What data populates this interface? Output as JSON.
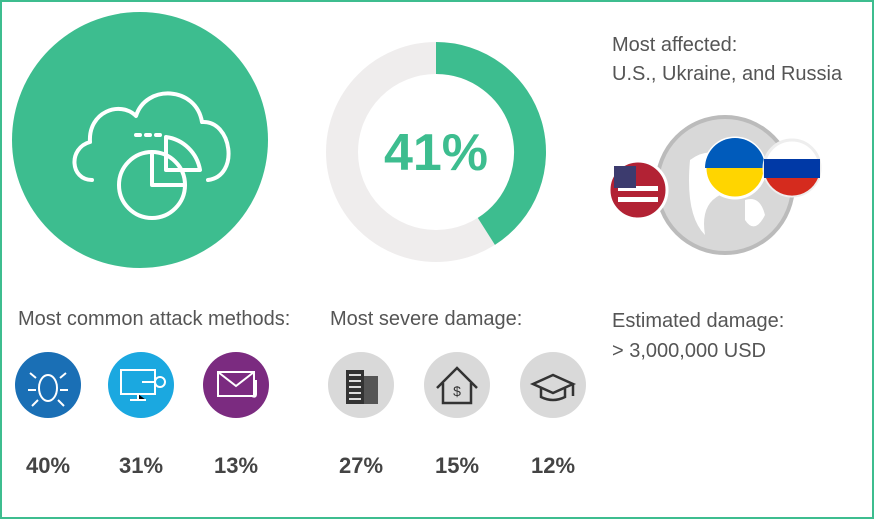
{
  "donut": {
    "value": 41,
    "label": "41%"
  },
  "affected": {
    "title": "Most affected:",
    "text": "U.S., Ukraine, and Russia"
  },
  "attack_methods": {
    "title": "Most common attack methods:",
    "items": [
      "40%",
      "31%",
      "13%"
    ]
  },
  "severe_damage": {
    "title": "Most severe damage:",
    "items": [
      "27%",
      "15%",
      "12%"
    ]
  },
  "estimated": {
    "title": "Estimated damage:",
    "text": "> 3,000,000 USD"
  }
}
